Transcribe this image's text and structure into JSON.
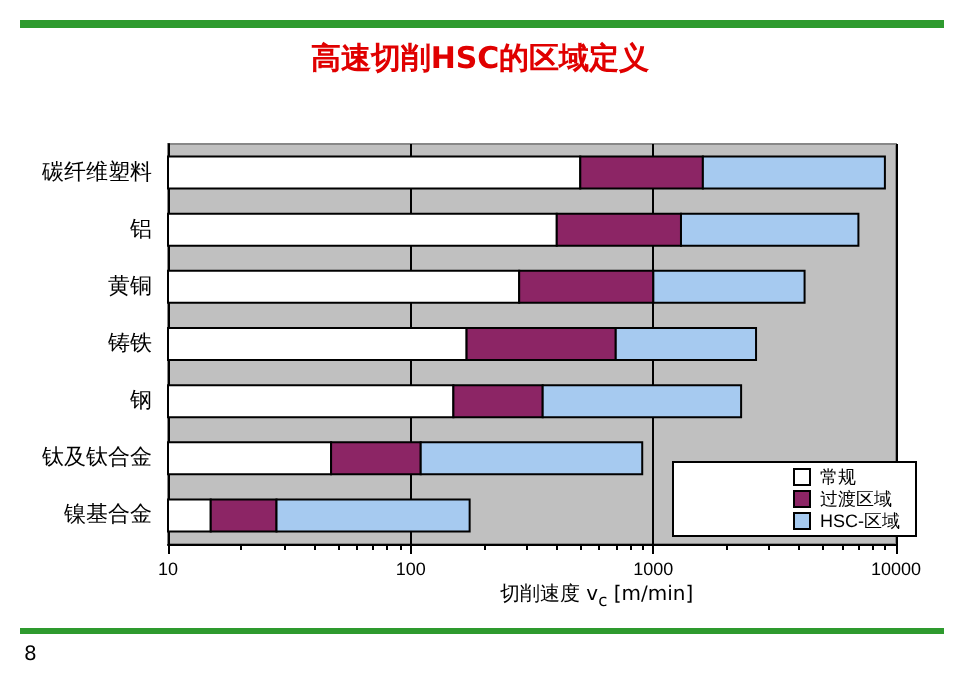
{
  "chart_data": {
    "type": "bar",
    "orientation": "horizontal",
    "stacked": true,
    "log": "x",
    "title": "高速切削HSC的区域定义",
    "xlabel": "切削速度 v$_{c}$ [m/min]",
    "categories": [
      "碳纤维塑料",
      "铝",
      "黄铜",
      "铸铁",
      "钢",
      "钛及钛合金",
      "镍基合金"
    ],
    "series": [
      {
        "name": "常规",
        "color": "#ffffff",
        "values": [
          500,
          400,
          280,
          170,
          150,
          47,
          15
        ]
      },
      {
        "name": "过渡区域",
        "color": "#8c2565",
        "values": [
          1100,
          900,
          720,
          530,
          200,
          63,
          13
        ]
      },
      {
        "name": "HSC-区域",
        "color": "#a6caf0",
        "values": [
          7400,
          5700,
          3200,
          1950,
          1950,
          790,
          147
        ]
      }
    ],
    "xlim": [
      10,
      10000
    ],
    "xticks": [
      10,
      100,
      1000,
      10000
    ],
    "grid": "x",
    "legend": "bottom right",
    "annotations": [
      "8"
    ]
  }
}
